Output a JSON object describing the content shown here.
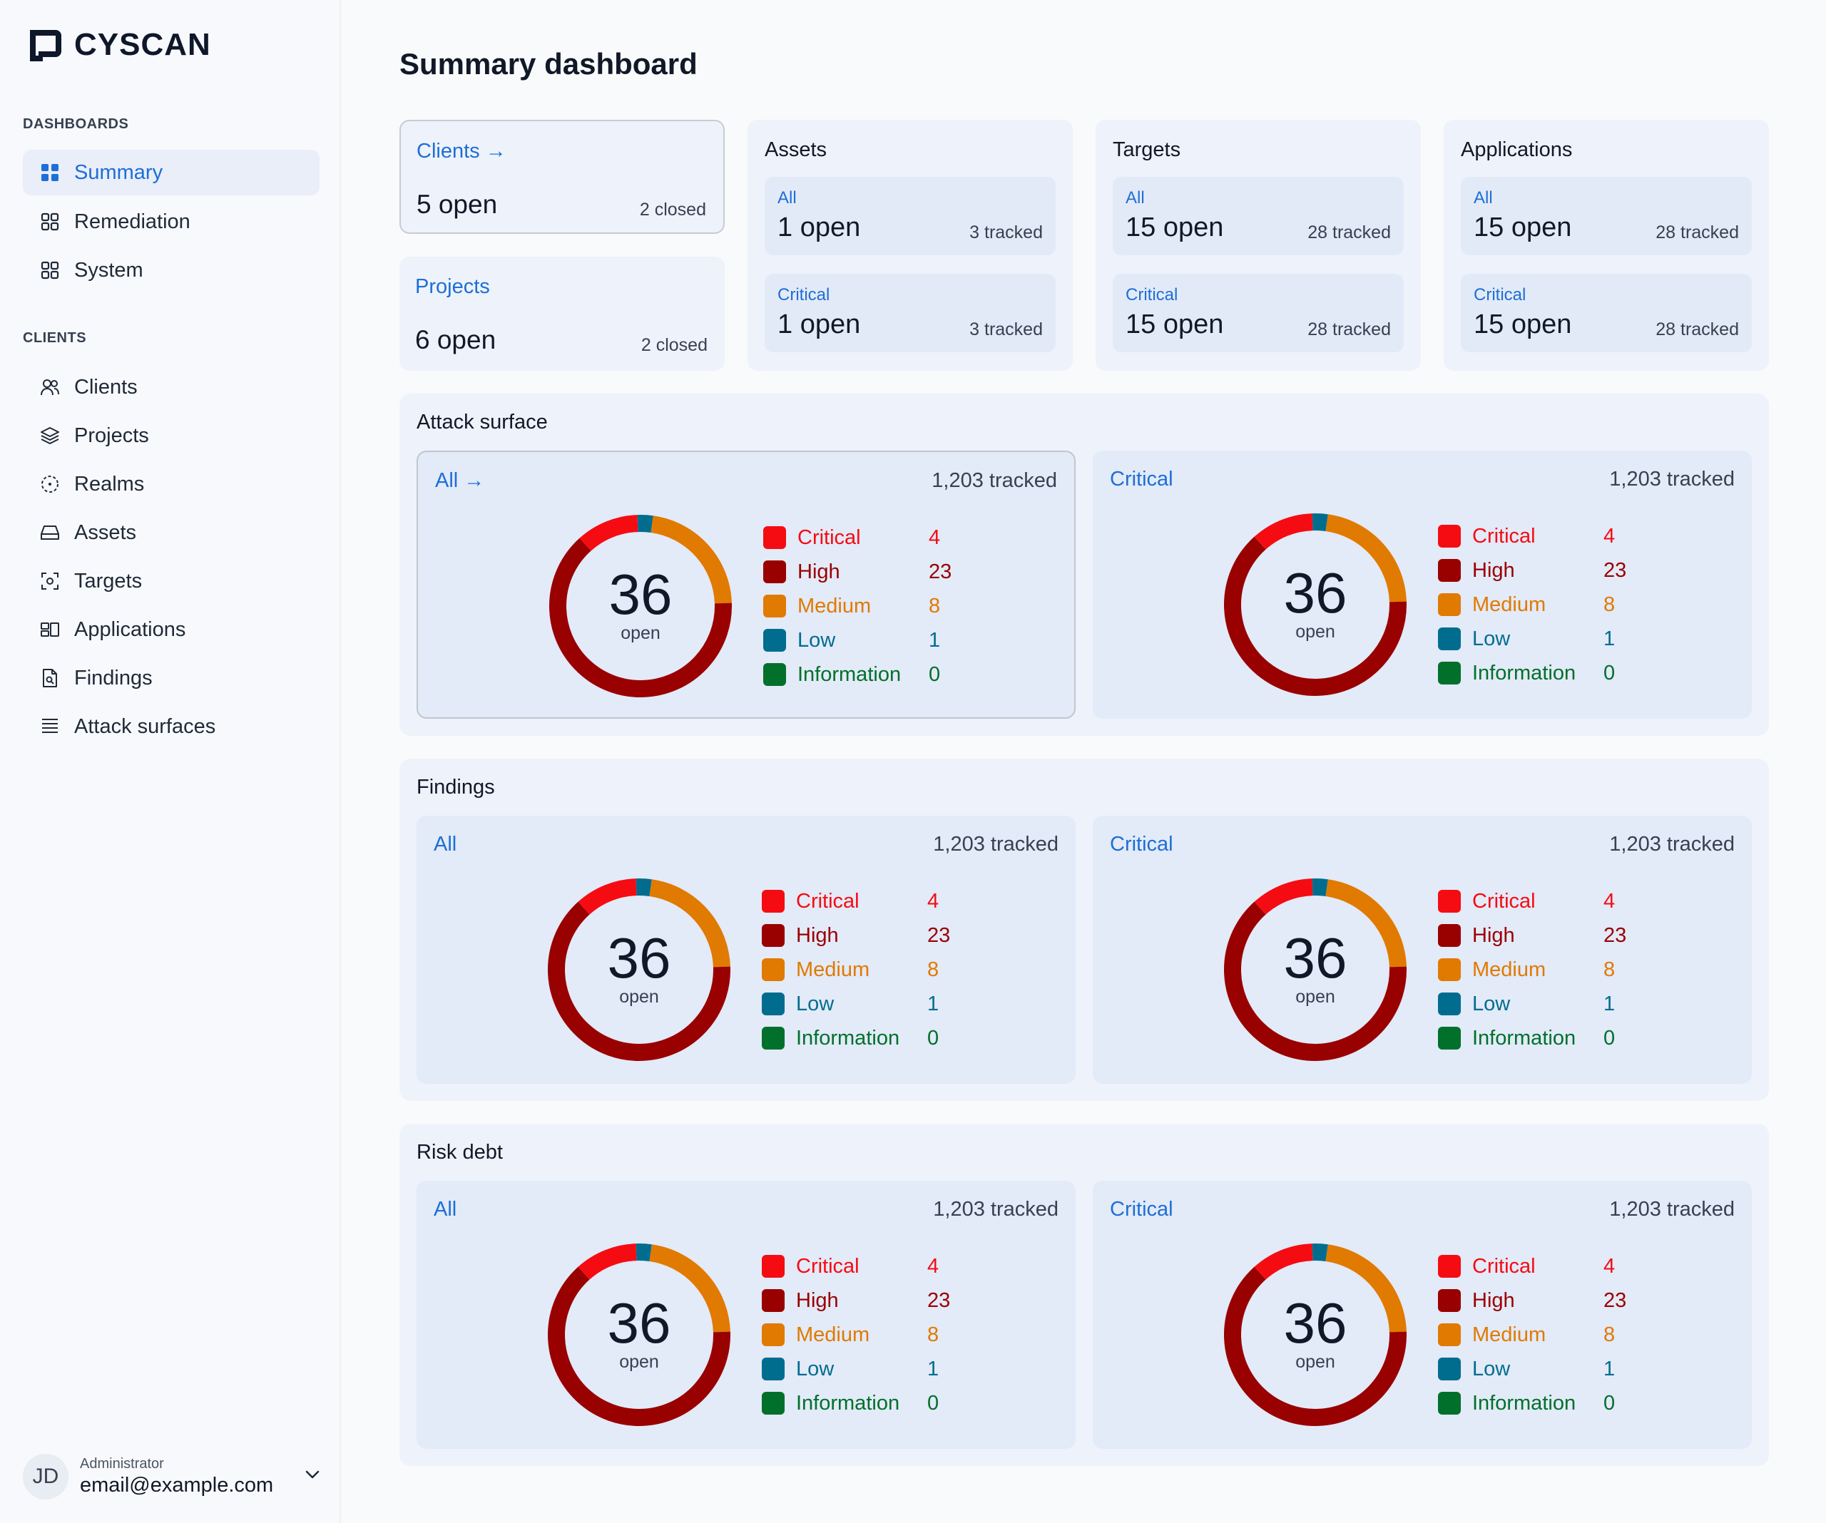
{
  "app": {
    "name": "CYSCAN"
  },
  "colors": {
    "accent": "#1d6fd6",
    "critical": "#f50c12",
    "high": "#990000",
    "medium": "#e07a00",
    "low": "#006d8f",
    "information": "#00702b"
  },
  "sidebar": {
    "dashboards_label": "DASHBOARDS",
    "dashboards": [
      {
        "label": "Summary",
        "icon": "grid-icon"
      },
      {
        "label": "Remediation",
        "icon": "grid-outline-icon"
      },
      {
        "label": "System",
        "icon": "grid-outline-icon"
      }
    ],
    "clients_label": "CLIENTS",
    "clients": [
      {
        "label": "Clients",
        "icon": "users-icon"
      },
      {
        "label": "Projects",
        "icon": "layers-icon"
      },
      {
        "label": "Realms",
        "icon": "realm-icon"
      },
      {
        "label": "Assets",
        "icon": "drive-icon"
      },
      {
        "label": "Targets",
        "icon": "target-icon"
      },
      {
        "label": "Applications",
        "icon": "apps-icon"
      },
      {
        "label": "Findings",
        "icon": "document-search-icon"
      },
      {
        "label": "Attack surfaces",
        "icon": "list-icon"
      }
    ],
    "user": {
      "initials": "JD",
      "role": "Administrator",
      "email": "email@example.com"
    }
  },
  "page": {
    "title": "Summary dashboard"
  },
  "top": {
    "clients": {
      "title": "Clients",
      "arrow": "→",
      "open": "5 open",
      "closed": "2 closed"
    },
    "projects": {
      "title": "Projects",
      "open": "6 open",
      "closed": "2 closed"
    },
    "groups": [
      {
        "title": "Assets",
        "stats": [
          {
            "label": "All",
            "open": "1 open",
            "tracked": "3 tracked"
          },
          {
            "label": "Critical",
            "open": "1 open",
            "tracked": "3 tracked"
          }
        ]
      },
      {
        "title": "Targets",
        "stats": [
          {
            "label": "All",
            "open": "15 open",
            "tracked": "28 tracked"
          },
          {
            "label": "Critical",
            "open": "15 open",
            "tracked": "28 tracked"
          }
        ]
      },
      {
        "title": "Applications",
        "stats": [
          {
            "label": "All",
            "open": "15 open",
            "tracked": "28 tracked"
          },
          {
            "label": "Critical",
            "open": "15 open",
            "tracked": "28 tracked"
          }
        ]
      }
    ]
  },
  "sections": [
    {
      "title": "Attack surface",
      "panels": [
        {
          "label": "All",
          "arrow": "→",
          "tracked": "1,203 tracked",
          "total": "36",
          "sub": "open"
        },
        {
          "label": "Critical",
          "tracked": "1,203 tracked",
          "total": "36",
          "sub": "open"
        }
      ]
    },
    {
      "title": "Findings",
      "panels": [
        {
          "label": "All",
          "tracked": "1,203 tracked",
          "total": "36",
          "sub": "open"
        },
        {
          "label": "Critical",
          "tracked": "1,203 tracked",
          "total": "36",
          "sub": "open"
        }
      ]
    },
    {
      "title": "Risk debt",
      "panels": [
        {
          "label": "All",
          "tracked": "1,203 tracked",
          "total": "36",
          "sub": "open"
        },
        {
          "label": "Critical",
          "tracked": "1,203 tracked",
          "total": "36",
          "sub": "open"
        }
      ]
    }
  ],
  "severity_legend": [
    {
      "name": "Critical",
      "value": 4
    },
    {
      "name": "High",
      "value": 23
    },
    {
      "name": "Medium",
      "value": 8
    },
    {
      "name": "Low",
      "value": 1
    },
    {
      "name": "Information",
      "value": 0
    }
  ]
}
